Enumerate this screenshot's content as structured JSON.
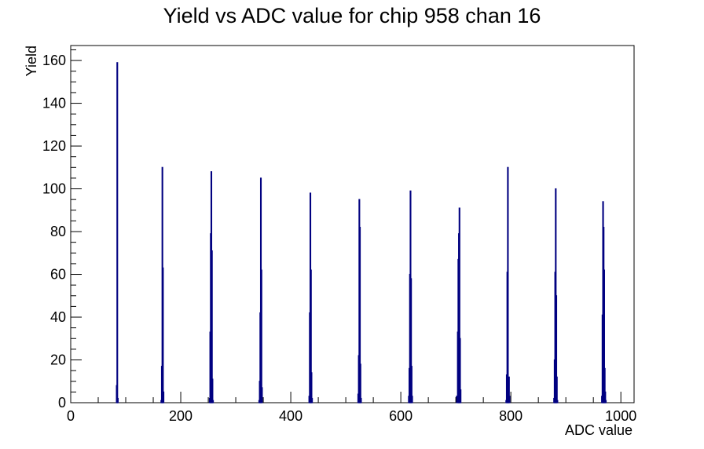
{
  "chart_data": {
    "type": "bar",
    "title": "Yield vs ADC value for chip 958 chan 16",
    "xlabel": "ADC value",
    "ylabel": "Yield",
    "xlim": [
      0,
      1024
    ],
    "ylim": [
      0,
      167
    ],
    "xticks": [
      0,
      200,
      400,
      600,
      800,
      1000
    ],
    "yticks": [
      0,
      20,
      40,
      60,
      80,
      100,
      120,
      140,
      160
    ],
    "grid": false,
    "legend": "none",
    "series_color": "#000080",
    "bin_width": 1,
    "bins": [
      [
        83,
        8
      ],
      [
        84,
        159
      ],
      [
        85,
        2
      ],
      [
        164,
        1
      ],
      [
        165,
        17
      ],
      [
        166,
        110
      ],
      [
        167,
        63
      ],
      [
        168,
        5
      ],
      [
        252,
        2
      ],
      [
        253,
        33
      ],
      [
        254,
        79
      ],
      [
        255,
        108
      ],
      [
        256,
        71
      ],
      [
        257,
        11
      ],
      [
        258,
        1
      ],
      [
        342,
        1
      ],
      [
        343,
        10
      ],
      [
        344,
        42
      ],
      [
        345,
        105
      ],
      [
        346,
        62
      ],
      [
        347,
        7
      ],
      [
        433,
        3
      ],
      [
        434,
        42
      ],
      [
        435,
        98
      ],
      [
        436,
        62
      ],
      [
        437,
        14
      ],
      [
        438,
        2
      ],
      [
        522,
        4
      ],
      [
        523,
        22
      ],
      [
        524,
        95
      ],
      [
        525,
        82
      ],
      [
        526,
        18
      ],
      [
        527,
        2
      ],
      [
        614,
        3
      ],
      [
        615,
        16
      ],
      [
        616,
        60
      ],
      [
        617,
        99
      ],
      [
        618,
        58
      ],
      [
        619,
        17
      ],
      [
        620,
        3
      ],
      [
        701,
        3
      ],
      [
        703,
        33
      ],
      [
        704,
        67
      ],
      [
        705,
        79
      ],
      [
        706,
        91
      ],
      [
        707,
        30
      ],
      [
        708,
        6
      ],
      [
        791,
        1
      ],
      [
        792,
        13
      ],
      [
        793,
        61
      ],
      [
        794,
        110
      ],
      [
        795,
        8
      ],
      [
        796,
        12
      ],
      [
        797,
        3
      ],
      [
        878,
        2
      ],
      [
        879,
        20
      ],
      [
        880,
        61
      ],
      [
        881,
        100
      ],
      [
        882,
        50
      ],
      [
        883,
        12
      ],
      [
        884,
        1
      ],
      [
        965,
        3
      ],
      [
        966,
        41
      ],
      [
        967,
        94
      ],
      [
        968,
        82
      ],
      [
        969,
        62
      ],
      [
        970,
        16
      ],
      [
        971,
        5
      ],
      [
        972,
        1
      ]
    ]
  }
}
